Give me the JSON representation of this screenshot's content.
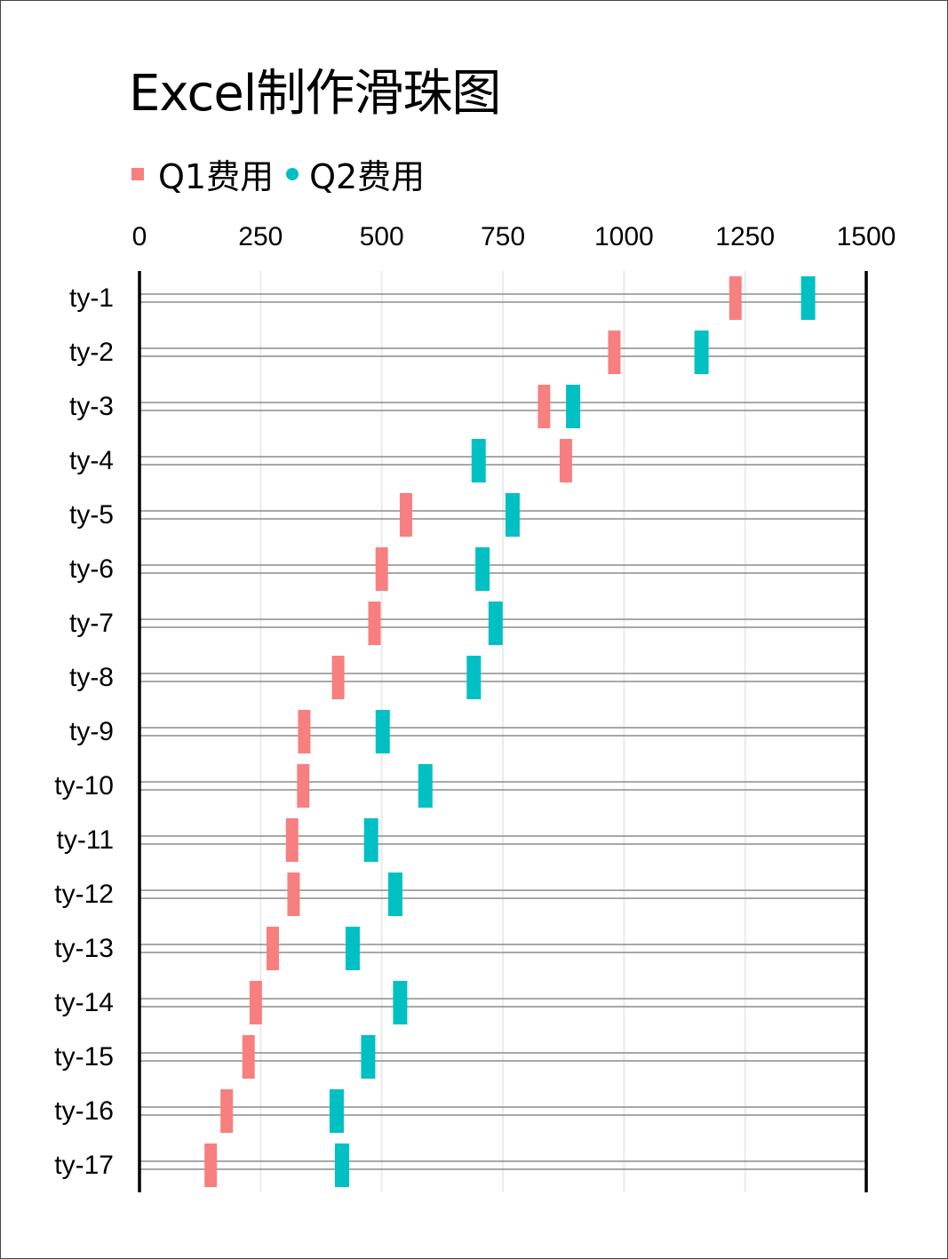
{
  "title": "Excel制作滑珠图",
  "legend": [
    {
      "label": "Q1费用",
      "color": "#F87F7F",
      "marker": "square"
    },
    {
      "label": "Q2费用",
      "color": "#00C0C4",
      "marker": "dot"
    }
  ],
  "chart_data": {
    "type": "scatter",
    "xlim": [
      0,
      1500
    ],
    "x_ticks": [
      "0",
      "250",
      "500",
      "750",
      "1000",
      "1250",
      "1500"
    ],
    "x_tick_values": [
      0,
      250,
      500,
      750,
      1000,
      1250,
      1500
    ],
    "categories": [
      "ty-1",
      "ty-2",
      "ty-3",
      "ty-4",
      "ty-5",
      "ty-6",
      "ty-7",
      "ty-8",
      "ty-9",
      "ty-10",
      "ty-11",
      "ty-12",
      "ty-13",
      "ty-14",
      "ty-15",
      "ty-16",
      "ty-17"
    ],
    "series": [
      {
        "name": "Q1费用",
        "color": "#F87F7F",
        "values": [
          1230,
          980,
          835,
          880,
          550,
          500,
          485,
          410,
          340,
          338,
          315,
          318,
          275,
          240,
          225,
          180,
          147
        ]
      },
      {
        "name": "Q2费用",
        "color": "#00C0C4",
        "values": [
          1380,
          1160,
          895,
          700,
          770,
          708,
          735,
          690,
          502,
          590,
          478,
          528,
          440,
          538,
          472,
          407,
          418
        ]
      }
    ],
    "grid": true,
    "legend_position": "top-left"
  }
}
